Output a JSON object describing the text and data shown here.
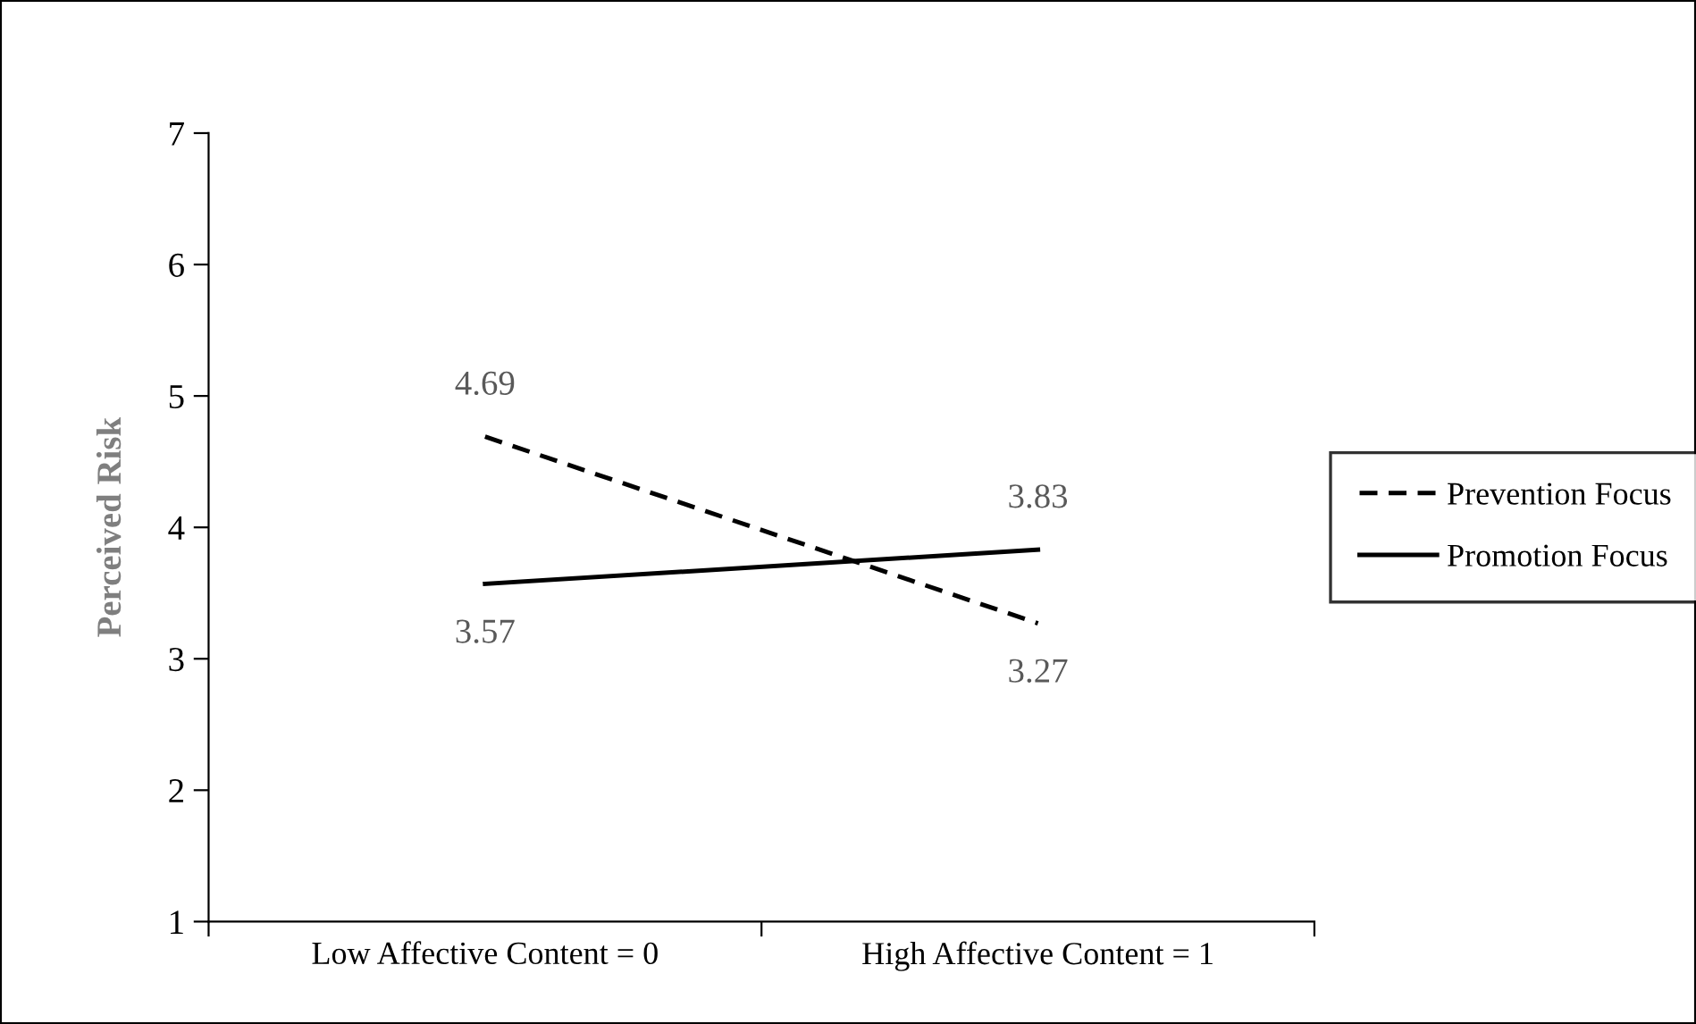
{
  "chart_data": {
    "type": "line",
    "ylabel": "Perceived Risk",
    "categories": [
      "Low Affective Content = 0",
      "High Affective Content = 1"
    ],
    "series": [
      {
        "name": "Prevention Focus",
        "color": "#000000",
        "values": [
          4.69,
          3.27
        ],
        "line_style": "dashed"
      },
      {
        "name": "Promotion Focus",
        "color": "#000000",
        "values": [
          3.57,
          3.83
        ],
        "line_style": "solid"
      }
    ],
    "ylim": [
      1,
      7
    ],
    "yticks": [
      1,
      2,
      3,
      4,
      5,
      6,
      7
    ],
    "grid": false,
    "legend": "right",
    "data_labels": true,
    "marker": "none"
  }
}
